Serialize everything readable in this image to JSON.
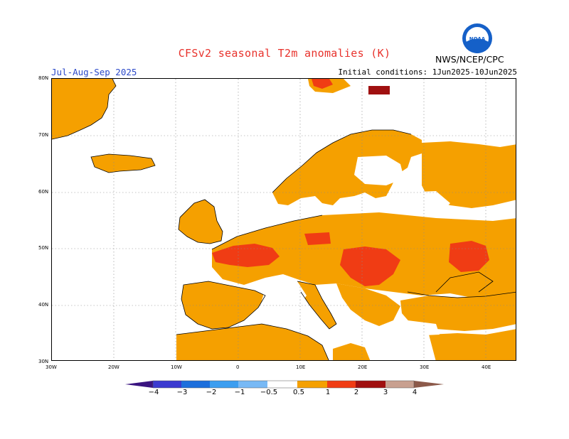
{
  "header": {
    "title": "CFSv2 seasonal T2m anomalies (K)",
    "period": "Jul-Aug-Sep 2025",
    "initial_conditions": "Initial conditions: 1Jun2025-10Jun2025",
    "agency": "NWS/NCEP/CPC",
    "logo_text": "NOAA"
  },
  "map": {
    "lat_labels": [
      "80N",
      "70N",
      "60N",
      "50N",
      "40N",
      "30N"
    ],
    "lon_labels": [
      "30W",
      "20W",
      "10W",
      "0",
      "10E",
      "20E",
      "30E",
      "40E"
    ],
    "extent": {
      "lon": [
        -30,
        45
      ],
      "lat": [
        30,
        80
      ]
    }
  },
  "legend": {
    "labels": [
      "−4",
      "−3",
      "−2",
      "−1",
      "−0.5",
      "0.5",
      "1",
      "2",
      "3",
      "4"
    ],
    "colors": {
      "lt_m4": "#3a1480",
      "m4_m3": "#3b3ad0",
      "m3_m2": "#1d6fdc",
      "m2_m1": "#3c9ef0",
      "m1_m05": "#78b9f5",
      "neutral": "#ffffff",
      "p05_p1": "#f5a000",
      "p1_p2": "#f03c14",
      "p2_p3": "#a01010",
      "p3_p4": "#c8a090",
      "gt_p4": "#8c5a4a"
    }
  }
}
